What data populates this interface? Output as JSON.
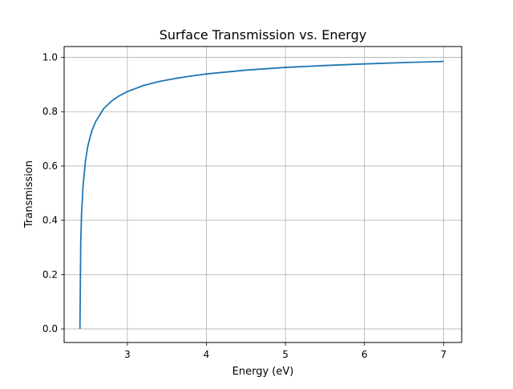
{
  "chart_data": {
    "type": "line",
    "title": "Surface Transmission vs. Energy",
    "xlabel": "Energy (eV)",
    "ylabel": "Transmission",
    "xlim": [
      2.2,
      7.23
    ],
    "ylim": [
      -0.05,
      1.04
    ],
    "x_ticks": [
      3,
      4,
      5,
      6,
      7
    ],
    "y_ticks": [
      0.0,
      0.2,
      0.4,
      0.6,
      0.8,
      1.0
    ],
    "x_tick_labels": [
      "3",
      "4",
      "5",
      "6",
      "7"
    ],
    "y_tick_labels": [
      "0.0",
      "0.2",
      "0.4",
      "0.6",
      "0.8",
      "1.0"
    ],
    "grid": true,
    "legend": false,
    "series": [
      {
        "color": "#1f77b4",
        "x": [
          2.4,
          2.41,
          2.42,
          2.44,
          2.47,
          2.5,
          2.55,
          2.6,
          2.7,
          2.8,
          2.9,
          3.0,
          3.2,
          3.4,
          3.6,
          3.8,
          4.0,
          4.5,
          5.0,
          5.5,
          6.0,
          6.5,
          7.0
        ],
        "y": [
          0.0,
          0.314,
          0.42,
          0.529,
          0.619,
          0.674,
          0.729,
          0.764,
          0.811,
          0.839,
          0.859,
          0.874,
          0.896,
          0.911,
          0.922,
          0.931,
          0.939,
          0.953,
          0.963,
          0.97,
          0.976,
          0.981,
          0.985
        ]
      }
    ]
  }
}
